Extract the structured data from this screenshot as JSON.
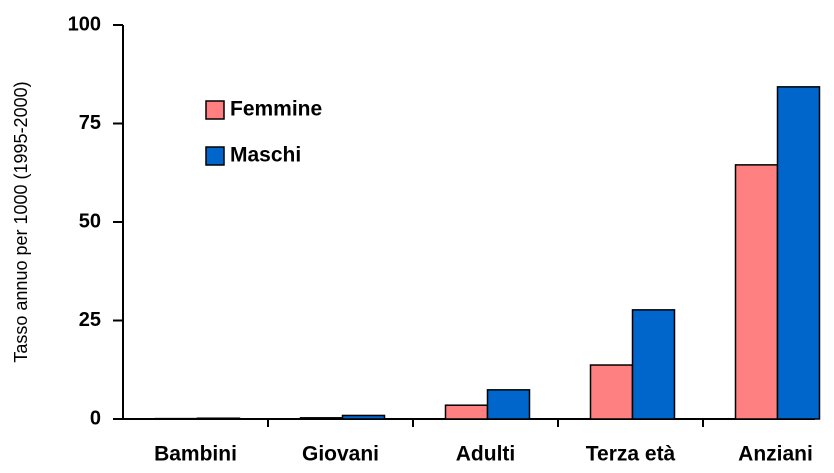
{
  "chart_data": {
    "type": "bar",
    "y_label": "Tasso annuo per 1000 (1995-2000)",
    "categories": [
      "Bambini",
      "Giovani",
      "Adulti",
      "Terza età",
      "Anziani"
    ],
    "series": [
      {
        "name": "Femmine",
        "color": "#ff8080",
        "values": [
          0.1,
          0.3,
          3.5,
          13.7,
          64.5
        ]
      },
      {
        "name": "Maschi",
        "color": "#0066cc",
        "values": [
          0.2,
          0.9,
          7.4,
          27.7,
          84.3
        ]
      }
    ],
    "ylim": [
      0,
      100
    ],
    "yticks": [
      0,
      25,
      50,
      75,
      100
    ],
    "grid": false
  }
}
